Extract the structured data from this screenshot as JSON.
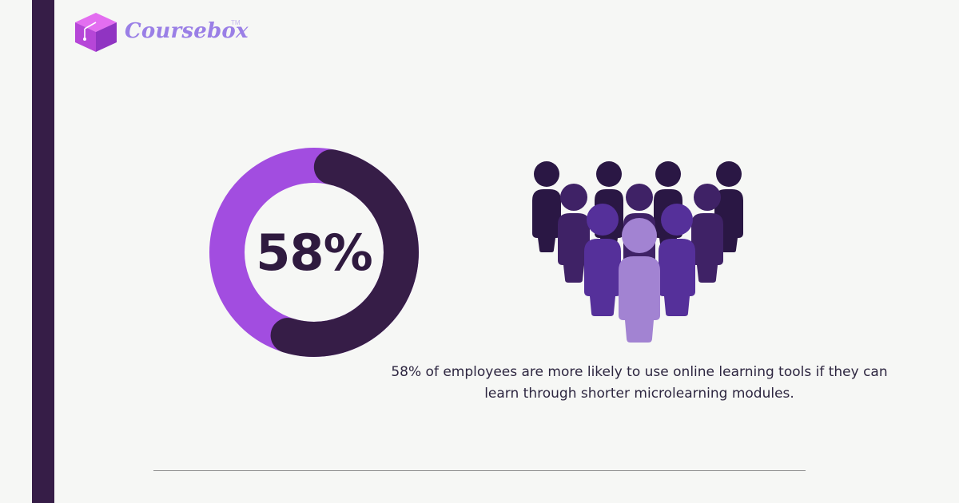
{
  "brand": {
    "name": "Coursebox",
    "trademark": "TM",
    "logo_icon": "graduation-box-icon"
  },
  "stat": {
    "value_label": "58%",
    "percent": 58,
    "caption": "58% of employees are more likely to use online learning tools if they can learn through shorter microlearning modules."
  },
  "colors": {
    "background": "#f6f7f5",
    "dark_purple": "#361d47",
    "accent_purple": "#a24de0",
    "mid_purple": "#4e2a84",
    "light_purple": "#a283d2",
    "divider": "#8e8e8e"
  },
  "illustration": {
    "icon": "people-group-icon",
    "people_count": 10
  }
}
